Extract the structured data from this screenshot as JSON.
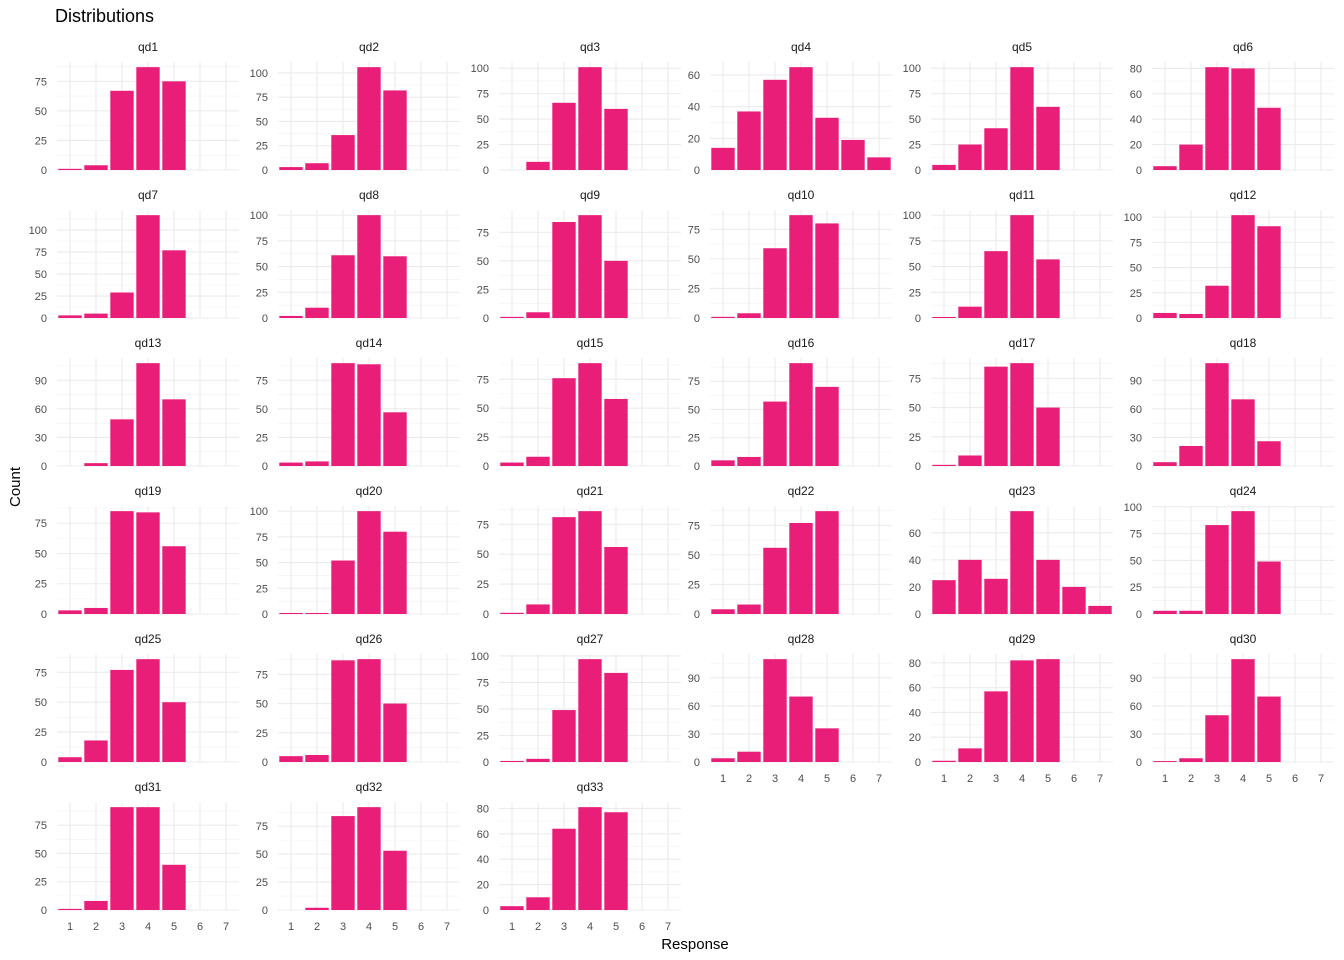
{
  "chart_data": {
    "type": "bar",
    "title": "Distributions",
    "xlabel": "Response",
    "ylabel": "Count",
    "x_categories": [
      "1",
      "2",
      "3",
      "4",
      "5",
      "6",
      "7"
    ],
    "bar_color": "#E91E78",
    "grid": true,
    "facets": [
      {
        "name": "qd1",
        "values": [
          1,
          4,
          67,
          87,
          75,
          0,
          0
        ],
        "yticks": [
          0,
          25,
          50,
          75
        ]
      },
      {
        "name": "qd2",
        "values": [
          3,
          7,
          36,
          106,
          82,
          0,
          0
        ],
        "yticks": [
          0,
          25,
          50,
          75,
          100
        ]
      },
      {
        "name": "qd3",
        "values": [
          0,
          8,
          66,
          101,
          60,
          0,
          0
        ],
        "yticks": [
          0,
          25,
          50,
          75,
          100
        ]
      },
      {
        "name": "qd4",
        "values": [
          14,
          37,
          57,
          65,
          33,
          19,
          8
        ],
        "yticks": [
          0,
          20,
          40,
          60
        ]
      },
      {
        "name": "qd5",
        "values": [
          5,
          25,
          41,
          101,
          62,
          0,
          0
        ],
        "yticks": [
          0,
          25,
          50,
          75,
          100
        ]
      },
      {
        "name": "qd6",
        "values": [
          3,
          20,
          81,
          80,
          49,
          0,
          0
        ],
        "yticks": [
          0,
          20,
          40,
          60,
          80
        ]
      },
      {
        "name": "qd7",
        "values": [
          3,
          5,
          29,
          117,
          77,
          0,
          0
        ],
        "yticks": [
          0,
          25,
          50,
          75,
          100
        ]
      },
      {
        "name": "qd8",
        "values": [
          2,
          10,
          61,
          100,
          60,
          0,
          0
        ],
        "yticks": [
          0,
          25,
          50,
          75,
          100
        ]
      },
      {
        "name": "qd9",
        "values": [
          1,
          5,
          84,
          90,
          50,
          0,
          0
        ],
        "yticks": [
          0,
          25,
          50,
          75
        ]
      },
      {
        "name": "qd10",
        "values": [
          1,
          4,
          59,
          87,
          80,
          0,
          0
        ],
        "yticks": [
          0,
          25,
          50,
          75
        ]
      },
      {
        "name": "qd11",
        "values": [
          1,
          11,
          65,
          100,
          57,
          0,
          0
        ],
        "yticks": [
          0,
          25,
          50,
          75,
          100
        ]
      },
      {
        "name": "qd12",
        "values": [
          5,
          4,
          32,
          102,
          91,
          0,
          0
        ],
        "yticks": [
          0,
          25,
          50,
          75,
          100
        ]
      },
      {
        "name": "qd13",
        "values": [
          0,
          3,
          49,
          108,
          70,
          0,
          0
        ],
        "yticks": [
          0,
          30,
          60,
          90
        ]
      },
      {
        "name": "qd14",
        "values": [
          3,
          4,
          90,
          89,
          47,
          0,
          0
        ],
        "yticks": [
          0,
          25,
          50,
          75
        ]
      },
      {
        "name": "qd15",
        "values": [
          3,
          8,
          76,
          89,
          58,
          0,
          0
        ],
        "yticks": [
          0,
          25,
          50,
          75
        ]
      },
      {
        "name": "qd16",
        "values": [
          5,
          8,
          57,
          91,
          70,
          0,
          0
        ],
        "yticks": [
          0,
          25,
          50,
          75
        ]
      },
      {
        "name": "qd17",
        "values": [
          1,
          9,
          85,
          88,
          50,
          0,
          0
        ],
        "yticks": [
          0,
          25,
          50,
          75
        ]
      },
      {
        "name": "qd18",
        "values": [
          4,
          21,
          108,
          70,
          26,
          0,
          0
        ],
        "yticks": [
          0,
          30,
          60,
          90
        ]
      },
      {
        "name": "qd19",
        "values": [
          3,
          5,
          85,
          84,
          56,
          0,
          0
        ],
        "yticks": [
          0,
          25,
          50,
          75
        ]
      },
      {
        "name": "qd20",
        "values": [
          1,
          1,
          52,
          100,
          80,
          0,
          0
        ],
        "yticks": [
          0,
          25,
          50,
          75,
          100
        ]
      },
      {
        "name": "qd21",
        "values": [
          1,
          8,
          81,
          86,
          56,
          0,
          0
        ],
        "yticks": [
          0,
          25,
          50,
          75
        ]
      },
      {
        "name": "qd22",
        "values": [
          4,
          8,
          56,
          77,
          87,
          0,
          0
        ],
        "yticks": [
          0,
          25,
          50,
          75
        ]
      },
      {
        "name": "qd23",
        "values": [
          25,
          40,
          26,
          76,
          40,
          20,
          6
        ],
        "yticks": [
          0,
          20,
          40,
          60,
          80
        ]
      },
      {
        "name": "qd24",
        "values": [
          3,
          3,
          83,
          96,
          49,
          0,
          0
        ],
        "yticks": [
          0,
          25,
          50,
          75,
          100
        ]
      },
      {
        "name": "qd25",
        "values": [
          4,
          18,
          77,
          86,
          50,
          0,
          0
        ],
        "yticks": [
          0,
          25,
          50,
          75
        ]
      },
      {
        "name": "qd26",
        "values": [
          5,
          6,
          87,
          88,
          50,
          0,
          0
        ],
        "yticks": [
          0,
          25,
          50,
          75
        ]
      },
      {
        "name": "qd27",
        "values": [
          1,
          3,
          49,
          97,
          84,
          0,
          0
        ],
        "yticks": [
          0,
          25,
          50,
          75,
          100
        ]
      },
      {
        "name": "qd28",
        "values": [
          4,
          11,
          110,
          70,
          36,
          0,
          0
        ],
        "yticks": [
          0,
          30,
          60,
          90
        ]
      },
      {
        "name": "qd29",
        "values": [
          1,
          11,
          57,
          82,
          83,
          0,
          0
        ],
        "yticks": [
          0,
          20,
          40,
          60,
          80
        ]
      },
      {
        "name": "qd30",
        "values": [
          1,
          4,
          50,
          110,
          70,
          0,
          0
        ],
        "yticks": [
          0,
          30,
          60,
          90
        ]
      },
      {
        "name": "qd31",
        "values": [
          1,
          8,
          91,
          91,
          40,
          0,
          0
        ],
        "yticks": [
          0,
          25,
          50,
          75
        ]
      },
      {
        "name": "qd32",
        "values": [
          0,
          2,
          84,
          92,
          53,
          0,
          0
        ],
        "yticks": [
          0,
          25,
          50,
          75
        ]
      },
      {
        "name": "qd33",
        "values": [
          3,
          10,
          64,
          81,
          77,
          0,
          0
        ],
        "yticks": [
          0,
          20,
          40,
          60,
          80
        ]
      }
    ]
  }
}
